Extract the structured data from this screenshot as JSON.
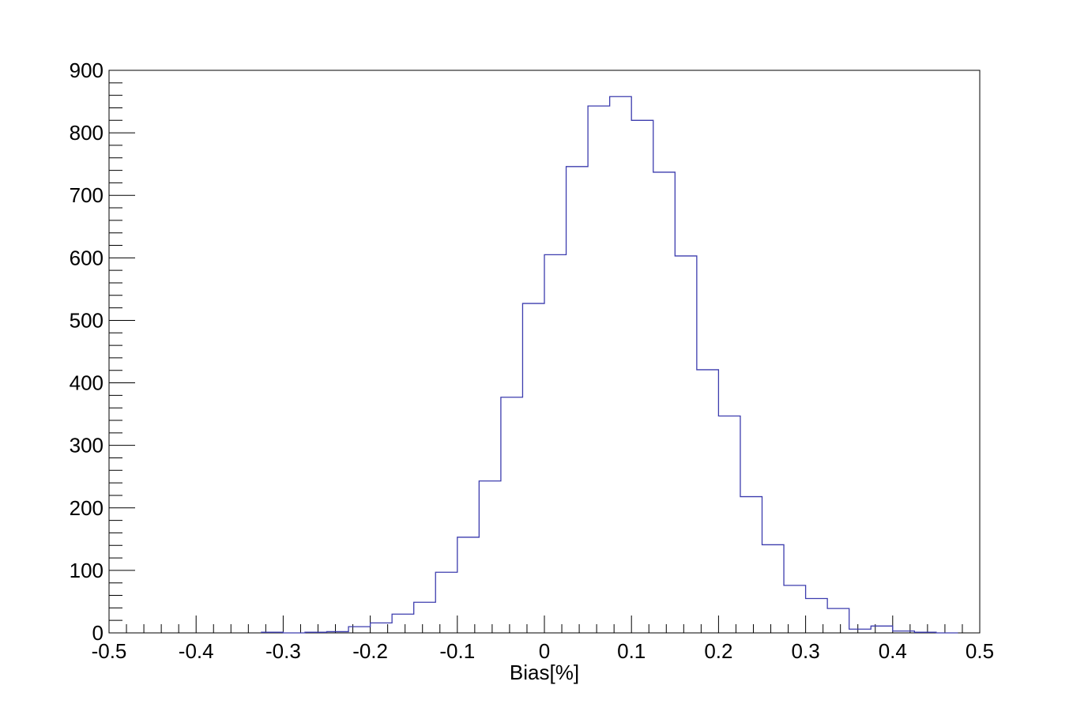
{
  "chart_data": {
    "type": "bar",
    "title": "",
    "xlabel": "Bias[%]",
    "ylabel": "",
    "xlim": [
      -0.5,
      0.5
    ],
    "ylim": [
      0,
      900
    ],
    "x_ticks": [
      "-0.5",
      "-0.4",
      "-0.3",
      "-0.2",
      "-0.1",
      "0",
      "0.1",
      "0.2",
      "0.3",
      "0.4",
      "0.5"
    ],
    "y_ticks": [
      "0",
      "100",
      "200",
      "300",
      "400",
      "500",
      "600",
      "700",
      "800",
      "900"
    ],
    "grid": false,
    "legend": "none",
    "line_color": "#3c3cae",
    "bin_width": 0.025,
    "bins": [
      {
        "x": -0.325,
        "y": 1
      },
      {
        "x": -0.3,
        "y": 0
      },
      {
        "x": -0.275,
        "y": 1
      },
      {
        "x": -0.25,
        "y": 2
      },
      {
        "x": -0.225,
        "y": 10
      },
      {
        "x": -0.2,
        "y": 16
      },
      {
        "x": -0.175,
        "y": 30
      },
      {
        "x": -0.15,
        "y": 49
      },
      {
        "x": -0.125,
        "y": 97
      },
      {
        "x": -0.1,
        "y": 153
      },
      {
        "x": -0.075,
        "y": 243
      },
      {
        "x": -0.05,
        "y": 377
      },
      {
        "x": -0.025,
        "y": 527
      },
      {
        "x": 0.0,
        "y": 605
      },
      {
        "x": 0.025,
        "y": 746
      },
      {
        "x": 0.05,
        "y": 843
      },
      {
        "x": 0.075,
        "y": 858
      },
      {
        "x": 0.1,
        "y": 820
      },
      {
        "x": 0.125,
        "y": 737
      },
      {
        "x": 0.15,
        "y": 603
      },
      {
        "x": 0.175,
        "y": 421
      },
      {
        "x": 0.2,
        "y": 347
      },
      {
        "x": 0.225,
        "y": 218
      },
      {
        "x": 0.25,
        "y": 141
      },
      {
        "x": 0.275,
        "y": 76
      },
      {
        "x": 0.3,
        "y": 55
      },
      {
        "x": 0.325,
        "y": 39
      },
      {
        "x": 0.35,
        "y": 6
      },
      {
        "x": 0.375,
        "y": 11
      },
      {
        "x": 0.4,
        "y": 3
      },
      {
        "x": 0.425,
        "y": 1
      },
      {
        "x": 0.45,
        "y": 0
      }
    ]
  }
}
